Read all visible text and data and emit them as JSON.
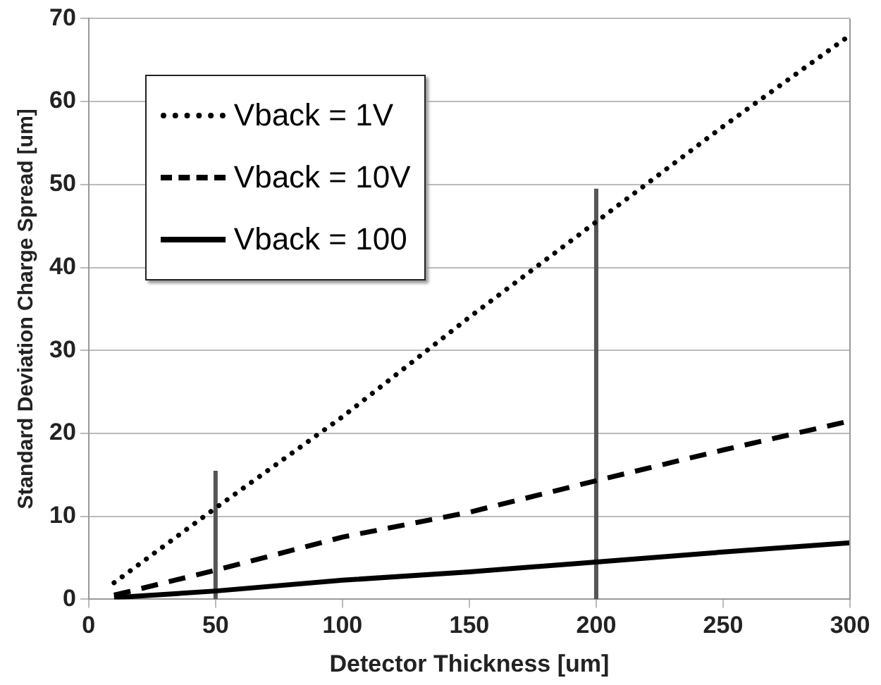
{
  "chart_data": {
    "type": "line",
    "xlabel": "Detector Thickness [um]",
    "ylabel": "Standard Deviation Charge Spread [um]",
    "xlim": [
      0,
      300
    ],
    "xticks": [
      0,
      50,
      100,
      150,
      200,
      250,
      300
    ],
    "ylim": [
      0,
      70
    ],
    "yticks": [
      0,
      10,
      20,
      30,
      40,
      50,
      60,
      70
    ],
    "grid": "y",
    "legend": "top left",
    "marker": "none",
    "series": [
      {
        "name": "Vback = 1V",
        "color": "#000000",
        "line_style": "dotted",
        "x": [
          10,
          50,
          100,
          150,
          200,
          250,
          300
        ],
        "values": [
          2,
          11,
          22,
          34,
          45.5,
          57,
          68
        ]
      },
      {
        "name": "Vback = 10V",
        "color": "#000000",
        "line_style": "dashed",
        "x": [
          10,
          50,
          100,
          150,
          200,
          250,
          300
        ],
        "values": [
          0.5,
          3.5,
          7.5,
          10.5,
          14.3,
          18,
          21.5
        ]
      },
      {
        "name": "Vback = 100",
        "color": "#000000",
        "line_style": "solid",
        "x": [
          10,
          50,
          100,
          150,
          200,
          250,
          300
        ],
        "values": [
          0.2,
          1,
          2.3,
          3.3,
          4.5,
          5.7,
          6.8
        ]
      },
      {
        "color": "#555555",
        "line_style": "solid",
        "x": [
          50,
          50
        ],
        "values": [
          0,
          15.5
        ]
      },
      {
        "color": "#555555",
        "line_style": "solid",
        "x": [
          200,
          200
        ],
        "values": [
          0,
          49.5
        ]
      }
    ]
  }
}
